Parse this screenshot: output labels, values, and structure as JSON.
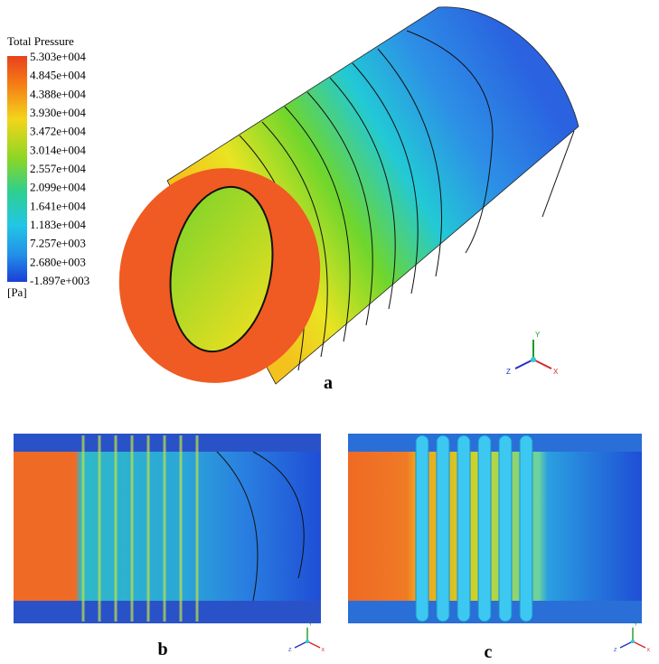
{
  "figure": {
    "legend": {
      "title": "Total Pressure",
      "ticks": [
        "5.303e+004",
        "4.845e+004",
        "4.388e+004",
        "3.930e+004",
        "3.472e+004",
        "3.014e+004",
        "2.557e+004",
        "2.099e+004",
        "1.641e+004",
        "1.183e+004",
        "7.257e+003",
        "2.680e+003",
        "-1.897e+003"
      ],
      "unit": "[Pa]"
    },
    "panels": [
      {
        "label": "a"
      },
      {
        "label": "b"
      },
      {
        "label": "c"
      }
    ],
    "axes": {
      "x": "X",
      "y": "Y",
      "z": "Z"
    }
  }
}
